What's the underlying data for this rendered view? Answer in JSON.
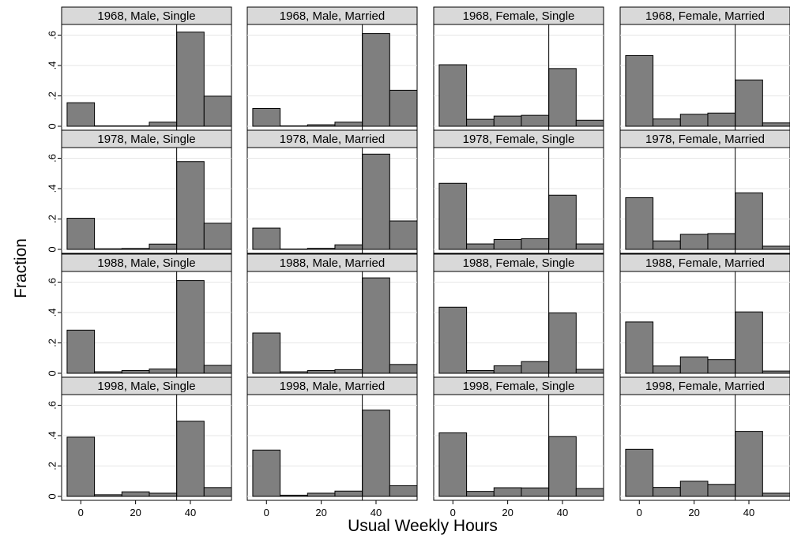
{
  "chart_data": {
    "type": "bar",
    "title": "",
    "xlabel": "Usual Weekly Hours",
    "ylabel": "Fraction",
    "bin_width": 10,
    "bin_centers": [
      0,
      10,
      20,
      30,
      40,
      50
    ],
    "xlim": [
      -7,
      55
    ],
    "ylim": [
      0,
      0.7
    ],
    "x_ticks": [
      0,
      20,
      40
    ],
    "x_tick_labels": [
      "0",
      "20",
      "40"
    ],
    "y_ticks": [
      0,
      0.2,
      0.4,
      0.6
    ],
    "y_tick_labels": [
      "0",
      ".2",
      ".4",
      ".6"
    ],
    "reference_line_x": 35,
    "bar_color": "#7f7f7f",
    "panel_header_color": "#d9d9d9",
    "grid": true,
    "panels": [
      {
        "title": "1968, Male, Single",
        "values": [
          0.155,
          0.0,
          0.0,
          0.027,
          0.62,
          0.198
        ]
      },
      {
        "title": "1968, Male, Married",
        "values": [
          0.117,
          0.002,
          0.01,
          0.027,
          0.61,
          0.237
        ]
      },
      {
        "title": "1968, Female, Single",
        "values": [
          0.405,
          0.046,
          0.067,
          0.072,
          0.38,
          0.04
        ]
      },
      {
        "title": "1968, Female, Married",
        "values": [
          0.465,
          0.048,
          0.079,
          0.087,
          0.305,
          0.022
        ]
      },
      {
        "title": "1978, Male, Single",
        "values": [
          0.205,
          0.004,
          0.006,
          0.035,
          0.578,
          0.172
        ]
      },
      {
        "title": "1978, Male, Married",
        "values": [
          0.14,
          0.002,
          0.007,
          0.03,
          0.627,
          0.187
        ]
      },
      {
        "title": "1978, Female, Single",
        "values": [
          0.435,
          0.036,
          0.065,
          0.07,
          0.357,
          0.036
        ]
      },
      {
        "title": "1978, Female, Married",
        "values": [
          0.34,
          0.056,
          0.099,
          0.104,
          0.372,
          0.021
        ]
      },
      {
        "title": "1988, Male, Single",
        "values": [
          0.284,
          0.01,
          0.018,
          0.028,
          0.61,
          0.052
        ]
      },
      {
        "title": "1988, Male, Married",
        "values": [
          0.265,
          0.01,
          0.018,
          0.024,
          0.628,
          0.058
        ]
      },
      {
        "title": "1988, Female, Single",
        "values": [
          0.435,
          0.018,
          0.049,
          0.077,
          0.397,
          0.026
        ]
      },
      {
        "title": "1988, Female, Married",
        "values": [
          0.338,
          0.048,
          0.108,
          0.09,
          0.404,
          0.015
        ]
      },
      {
        "title": "1998, Male, Single",
        "values": [
          0.39,
          0.011,
          0.03,
          0.021,
          0.495,
          0.058
        ]
      },
      {
        "title": "1998, Male, Married",
        "values": [
          0.305,
          0.008,
          0.021,
          0.035,
          0.568,
          0.07
        ]
      },
      {
        "title": "1998, Female, Single",
        "values": [
          0.418,
          0.033,
          0.057,
          0.056,
          0.393,
          0.052
        ]
      },
      {
        "title": "1998, Female, Married",
        "values": [
          0.31,
          0.059,
          0.1,
          0.079,
          0.428,
          0.021
        ]
      }
    ]
  }
}
